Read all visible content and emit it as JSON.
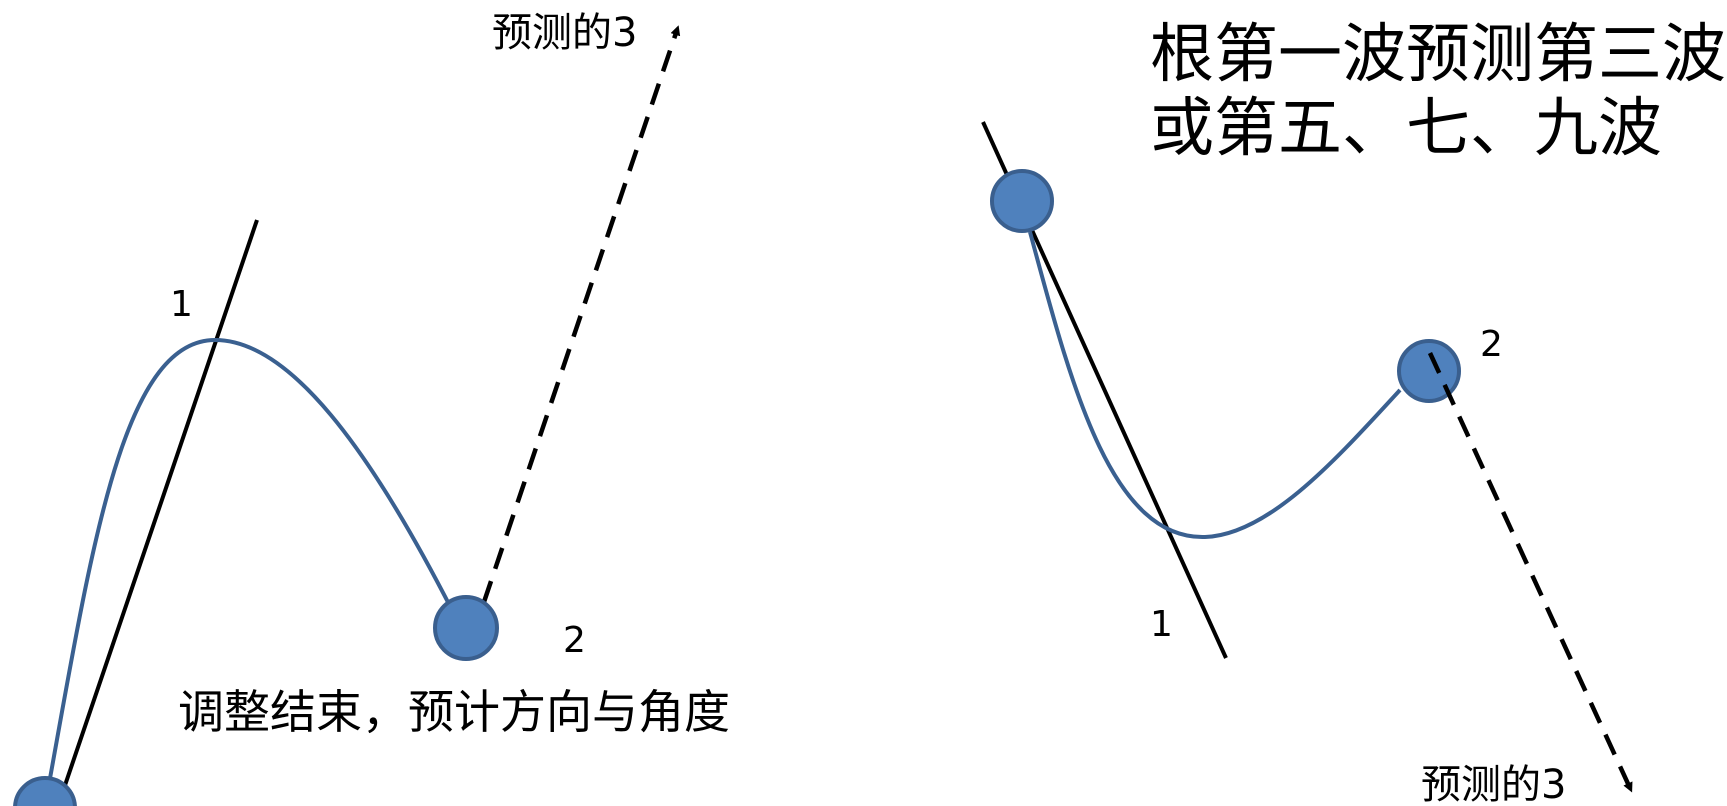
{
  "colors": {
    "curve": "#3a6090",
    "node_fill": "#4f81bd",
    "node_stroke": "#3a5f8e",
    "line": "#000000",
    "background": "#ffffff"
  },
  "title": {
    "line1": "根第一波预测第三波",
    "line2": "或第五、七、九波"
  },
  "left_panel": {
    "predicted_label": "预测的3",
    "wave1_label": "1",
    "wave2_label": "2",
    "caption": "调整结束，预计方向与角度"
  },
  "right_panel": {
    "predicted_label": "预测的3",
    "wave1_label": "1",
    "wave2_label": "2"
  }
}
